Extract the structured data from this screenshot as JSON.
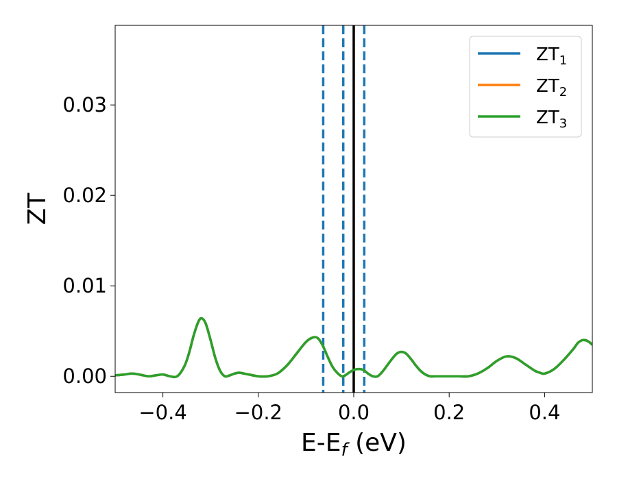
{
  "chart_data": {
    "type": "line",
    "xlabel": "E-E",
    "xlabel_sub": "f",
    "xlabel_unit": " (eV)",
    "ylabel": "ZT",
    "xlim": [
      -0.5,
      0.5
    ],
    "ylim": [
      -0.0018,
      0.0388
    ],
    "x_ticks": [
      -0.4,
      -0.2,
      0.0,
      0.2,
      0.4
    ],
    "x_tick_labels": [
      "−0.4",
      "−0.2",
      "0.0",
      "0.2",
      "0.4"
    ],
    "y_ticks": [
      0.0,
      0.01,
      0.02,
      0.03
    ],
    "y_tick_labels": [
      "0.00",
      "0.01",
      "0.02",
      "0.03"
    ],
    "grid": false,
    "legend_position": "top-right",
    "vertical_lines": [
      {
        "x": -0.064,
        "style": "dashed",
        "color": "#1f77b4"
      },
      {
        "x": -0.022,
        "style": "dashed",
        "color": "#1f77b4"
      },
      {
        "x": 0.0,
        "style": "solid",
        "color": "#000000"
      },
      {
        "x": 0.022,
        "style": "dashed",
        "color": "#1f77b4"
      }
    ],
    "x": [
      -0.5,
      -0.48,
      -0.465,
      -0.45,
      -0.43,
      -0.415,
      -0.4,
      -0.385,
      -0.37,
      -0.355,
      -0.345,
      -0.335,
      -0.325,
      -0.318,
      -0.31,
      -0.3,
      -0.29,
      -0.28,
      -0.27,
      -0.26,
      -0.25,
      -0.24,
      -0.23,
      -0.22,
      -0.2,
      -0.18,
      -0.16,
      -0.14,
      -0.12,
      -0.1,
      -0.085,
      -0.075,
      -0.065,
      -0.055,
      -0.045,
      -0.035,
      -0.025,
      -0.018,
      -0.01,
      0.0,
      0.01,
      0.02,
      0.03,
      0.04,
      0.05,
      0.06,
      0.07,
      0.08,
      0.09,
      0.1,
      0.11,
      0.12,
      0.13,
      0.14,
      0.15,
      0.16,
      0.17,
      0.18,
      0.2,
      0.22,
      0.24,
      0.26,
      0.28,
      0.3,
      0.32,
      0.34,
      0.36,
      0.38,
      0.39,
      0.4,
      0.42,
      0.44,
      0.46,
      0.47,
      0.48,
      0.49,
      0.5
    ],
    "series": [
      {
        "name": "ZT",
        "name_sub": "1",
        "color": "#1f77b4",
        "values": [
          0.0001,
          0.0002,
          0.0003,
          0.0002,
          0.0,
          0.0001,
          0.0002,
          0.0,
          0.0,
          0.0011,
          0.0026,
          0.0046,
          0.0061,
          0.0064,
          0.0058,
          0.004,
          0.002,
          0.0006,
          0.0,
          0.0001,
          0.0003,
          0.0004,
          0.0003,
          0.0002,
          0.0,
          0.0,
          0.0003,
          0.0012,
          0.0025,
          0.0038,
          0.0043,
          0.0042,
          0.0034,
          0.0022,
          0.0011,
          0.0004,
          0.0,
          0.0001,
          0.0004,
          0.0007,
          0.0008,
          0.0007,
          0.0003,
          0.0,
          0.0,
          0.0005,
          0.0012,
          0.0019,
          0.0025,
          0.0027,
          0.0025,
          0.0019,
          0.0012,
          0.0006,
          0.0002,
          0.0,
          0.0,
          0.0,
          0.0,
          0.0,
          0.0,
          0.0003,
          0.0009,
          0.0017,
          0.0022,
          0.002,
          0.0013,
          0.0006,
          0.0004,
          0.0003,
          0.0008,
          0.0018,
          0.003,
          0.0037,
          0.004,
          0.0039,
          0.0035
        ]
      },
      {
        "name": "ZT",
        "name_sub": "2",
        "color": "#ff7f0e",
        "values": [
          0.0001,
          0.0002,
          0.0003,
          0.0002,
          0.0,
          0.0001,
          0.0002,
          0.0,
          0.0,
          0.0011,
          0.0026,
          0.0046,
          0.0061,
          0.0064,
          0.0058,
          0.004,
          0.002,
          0.0006,
          0.0,
          0.0001,
          0.0003,
          0.0004,
          0.0003,
          0.0002,
          0.0,
          0.0,
          0.0003,
          0.0012,
          0.0025,
          0.0038,
          0.0043,
          0.0042,
          0.0034,
          0.0022,
          0.0011,
          0.0004,
          0.0,
          0.0001,
          0.0004,
          0.0007,
          0.0008,
          0.0007,
          0.0003,
          0.0,
          0.0,
          0.0005,
          0.0012,
          0.0019,
          0.0025,
          0.0027,
          0.0025,
          0.0019,
          0.0012,
          0.0006,
          0.0002,
          0.0,
          0.0,
          0.0,
          0.0,
          0.0,
          0.0,
          0.0003,
          0.0009,
          0.0017,
          0.0022,
          0.002,
          0.0013,
          0.0006,
          0.0004,
          0.0003,
          0.0008,
          0.0018,
          0.003,
          0.0037,
          0.004,
          0.0039,
          0.0035
        ]
      },
      {
        "name": "ZT",
        "name_sub": "3",
        "color": "#2ca02c",
        "values": [
          0.0001,
          0.0002,
          0.0003,
          0.0002,
          0.0,
          0.0001,
          0.0002,
          0.0,
          0.0,
          0.0011,
          0.0026,
          0.0046,
          0.0061,
          0.0064,
          0.0058,
          0.004,
          0.002,
          0.0006,
          0.0,
          0.0001,
          0.0003,
          0.0004,
          0.0003,
          0.0002,
          0.0,
          0.0,
          0.0003,
          0.0012,
          0.0025,
          0.0038,
          0.0043,
          0.0042,
          0.0034,
          0.0022,
          0.0011,
          0.0004,
          0.0,
          0.0001,
          0.0004,
          0.0007,
          0.0008,
          0.0007,
          0.0003,
          0.0,
          0.0,
          0.0005,
          0.0012,
          0.0019,
          0.0025,
          0.0027,
          0.0025,
          0.0019,
          0.0012,
          0.0006,
          0.0002,
          0.0,
          0.0,
          0.0,
          0.0,
          0.0,
          0.0,
          0.0003,
          0.0009,
          0.0017,
          0.0022,
          0.002,
          0.0013,
          0.0006,
          0.0004,
          0.0003,
          0.0008,
          0.0018,
          0.003,
          0.0037,
          0.004,
          0.0039,
          0.0035
        ]
      }
    ]
  }
}
